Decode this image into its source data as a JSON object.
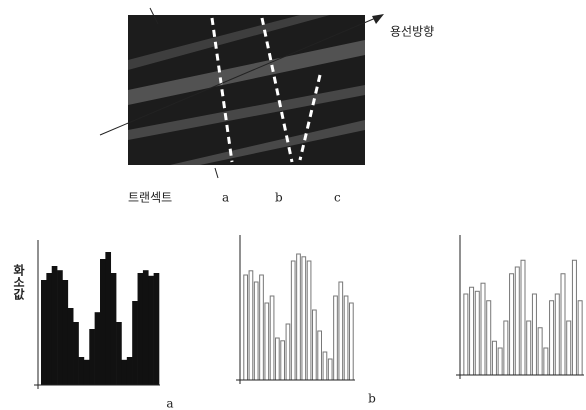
{
  "image": {
    "direction_label": "용선방향",
    "transect_label": "트랜섹트",
    "line_labels": [
      "a",
      "b",
      "c"
    ]
  },
  "y_axis_label": "화소값",
  "chart_data": [
    {
      "type": "bar",
      "color": "#111111",
      "filled": true,
      "ylim": [
        0,
        100
      ],
      "x_label": "a",
      "values": [
        75,
        80,
        85,
        82,
        75,
        55,
        45,
        20,
        18,
        40,
        52,
        90,
        95,
        80,
        45,
        18,
        20,
        60,
        80,
        82,
        78,
        80
      ]
    },
    {
      "type": "bar",
      "color": "#777777",
      "filled": false,
      "ylim": [
        0,
        100
      ],
      "x_label": "b",
      "values": [
        75,
        78,
        70,
        75,
        55,
        60,
        30,
        28,
        40,
        85,
        90,
        88,
        85,
        50,
        35,
        20,
        15,
        60,
        70,
        60,
        55
      ]
    },
    {
      "type": "bar",
      "color": "#777777",
      "filled": false,
      "ylim": [
        0,
        100
      ],
      "values": [
        60,
        65,
        62,
        68,
        55,
        25,
        20,
        40,
        75,
        80,
        85,
        40,
        60,
        35,
        20,
        55,
        60,
        75,
        40,
        85,
        55
      ]
    }
  ]
}
